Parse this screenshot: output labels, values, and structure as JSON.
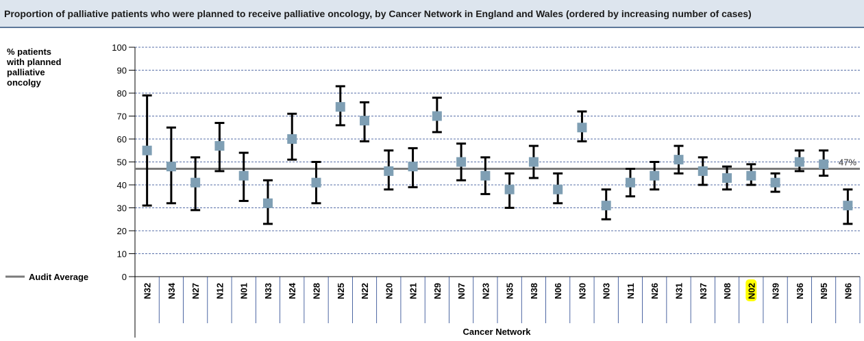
{
  "chart_data": {
    "type": "errorbar",
    "title": "Proportion of palliative patients who were planned to receive palliative oncology, by Cancer Network in England and Wales (ordered by increasing number of cases)",
    "y_label": [
      "% patients",
      "with planned",
      "palliative",
      "oncolgy"
    ],
    "x_label": "Cancer Network",
    "categories": [
      "N32",
      "N34",
      "N27",
      "N12",
      "N01",
      "N33",
      "N24",
      "N28",
      "N25",
      "N22",
      "N20",
      "N21",
      "N29",
      "N07",
      "N23",
      "N35",
      "N38",
      "N06",
      "N30",
      "N03",
      "N11",
      "N26",
      "N31",
      "N37",
      "N08",
      "N02",
      "N39",
      "N36",
      "N95",
      "N96"
    ],
    "series": [
      {
        "color": "#7f9fb4",
        "values": [
          55,
          48,
          41,
          57,
          44,
          32,
          60,
          41,
          74,
          68,
          46,
          48,
          70,
          50,
          44,
          38,
          50,
          38,
          65,
          31,
          41,
          44,
          51,
          46,
          43,
          44,
          41,
          50,
          49,
          31
        ],
        "low": [
          31,
          32,
          29,
          46,
          33,
          23,
          51,
          32,
          66,
          59,
          38,
          39,
          63,
          42,
          36,
          30,
          43,
          32,
          59,
          25,
          35,
          38,
          45,
          40,
          38,
          40,
          37,
          46,
          44,
          23
        ],
        "high": [
          79,
          65,
          52,
          67,
          54,
          42,
          71,
          50,
          83,
          76,
          55,
          56,
          78,
          58,
          52,
          45,
          57,
          45,
          72,
          38,
          47,
          50,
          57,
          52,
          48,
          49,
          45,
          55,
          55,
          38
        ]
      }
    ],
    "average": {
      "name": "Audit Average",
      "value": 47,
      "value_label": "47%",
      "color": "#7a7a7a"
    },
    "highlight": "N02",
    "highlight_color": "#ffff00",
    "ylim": [
      0,
      100
    ],
    "yticks": [
      0,
      10,
      20,
      30,
      40,
      50,
      60,
      70,
      80,
      90,
      100
    ],
    "grid": true
  }
}
